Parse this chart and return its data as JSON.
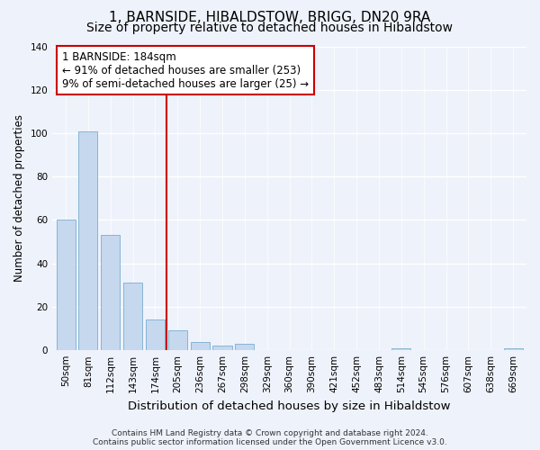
{
  "title": "1, BARNSIDE, HIBALDSTOW, BRIGG, DN20 9RA",
  "subtitle": "Size of property relative to detached houses in Hibaldstow",
  "xlabel": "Distribution of detached houses by size in Hibaldstow",
  "ylabel": "Number of detached properties",
  "bar_labels": [
    "50sqm",
    "81sqm",
    "112sqm",
    "143sqm",
    "174sqm",
    "205sqm",
    "236sqm",
    "267sqm",
    "298sqm",
    "329sqm",
    "360sqm",
    "390sqm",
    "421sqm",
    "452sqm",
    "483sqm",
    "514sqm",
    "545sqm",
    "576sqm",
    "607sqm",
    "638sqm",
    "669sqm"
  ],
  "bar_values": [
    60,
    101,
    53,
    31,
    14,
    9,
    4,
    2,
    3,
    0,
    0,
    0,
    0,
    0,
    0,
    1,
    0,
    0,
    0,
    0,
    1
  ],
  "bar_color": "#c5d8ee",
  "bar_edge_color": "#7aaed0",
  "vline_x_index": 4.5,
  "annotation_box_text": "1 BARNSIDE: 184sqm\n← 91% of detached houses are smaller (253)\n9% of semi-detached houses are larger (25) →",
  "vline_color": "#cc0000",
  "ylim": [
    0,
    140
  ],
  "yticks": [
    0,
    20,
    40,
    60,
    80,
    100,
    120,
    140
  ],
  "footer_text": "Contains HM Land Registry data © Crown copyright and database right 2024.\nContains public sector information licensed under the Open Government Licence v3.0.",
  "background_color": "#eef2fb",
  "grid_color": "#ffffff",
  "title_fontsize": 11,
  "subtitle_fontsize": 10,
  "xlabel_fontsize": 9.5,
  "ylabel_fontsize": 8.5,
  "tick_fontsize": 7.5,
  "footer_fontsize": 6.5,
  "annotation_fontsize": 8.5
}
